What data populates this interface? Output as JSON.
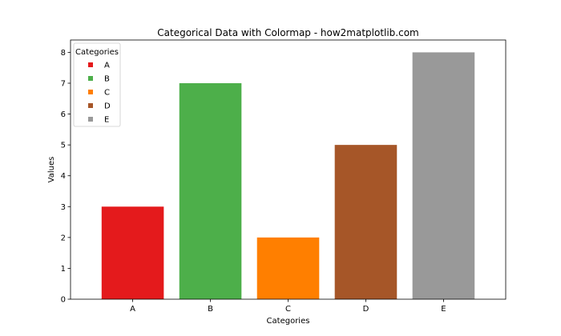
{
  "chart_data": {
    "type": "bar",
    "title": "Categorical Data with Colormap - how2matplotlib.com",
    "xlabel": "Categories",
    "ylabel": "Values",
    "categories": [
      "A",
      "B",
      "C",
      "D",
      "E"
    ],
    "values": [
      3,
      7,
      2,
      5,
      8
    ],
    "colors": [
      "#e41a1c",
      "#4daf4a",
      "#ff7f00",
      "#a65628",
      "#999999"
    ],
    "ylim": [
      0,
      8.4
    ],
    "yticks": [
      0,
      1,
      2,
      3,
      4,
      5,
      6,
      7,
      8
    ],
    "grid": false,
    "legend": {
      "title": "Categories",
      "placement": "top-left",
      "entries": [
        "A",
        "B",
        "C",
        "D",
        "E"
      ]
    }
  }
}
